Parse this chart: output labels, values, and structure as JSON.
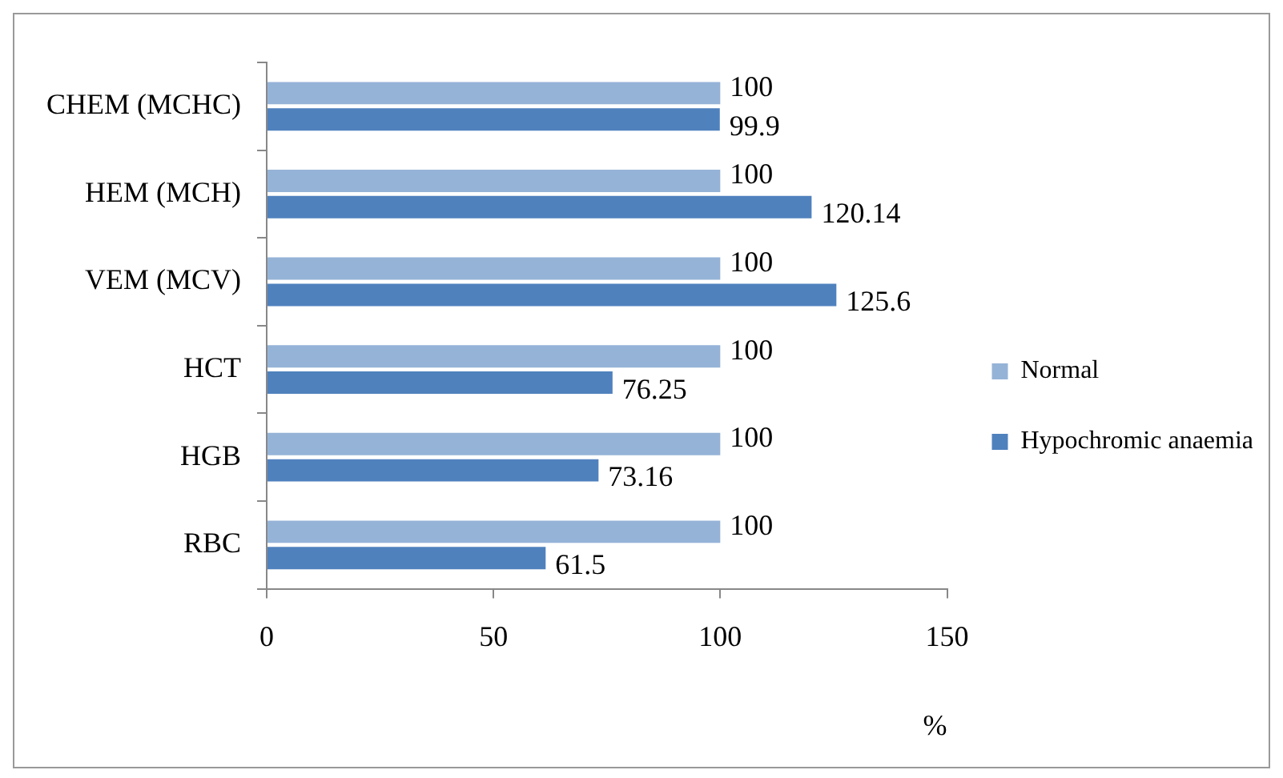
{
  "chart_data": {
    "type": "bar",
    "orientation": "horizontal",
    "xlabel": "%",
    "categories": [
      "CHEM (MCHC)",
      "HEM (MCH)",
      "VEM (MCV)",
      "HCT",
      "HGB",
      "RBC"
    ],
    "series": [
      {
        "name": "Normal",
        "color": "#95b3d7",
        "values": [
          100,
          100,
          100,
          100,
          100,
          100
        ]
      },
      {
        "name": "Hypochromic anaemia",
        "color": "#4f81bd",
        "values": [
          99.9,
          120.14,
          125.6,
          76.25,
          73.16,
          61.5
        ]
      }
    ],
    "xlim": [
      0,
      150
    ],
    "xticks": [
      0,
      50,
      100,
      150
    ],
    "grid": false,
    "legend": "right",
    "data_labels": true
  }
}
